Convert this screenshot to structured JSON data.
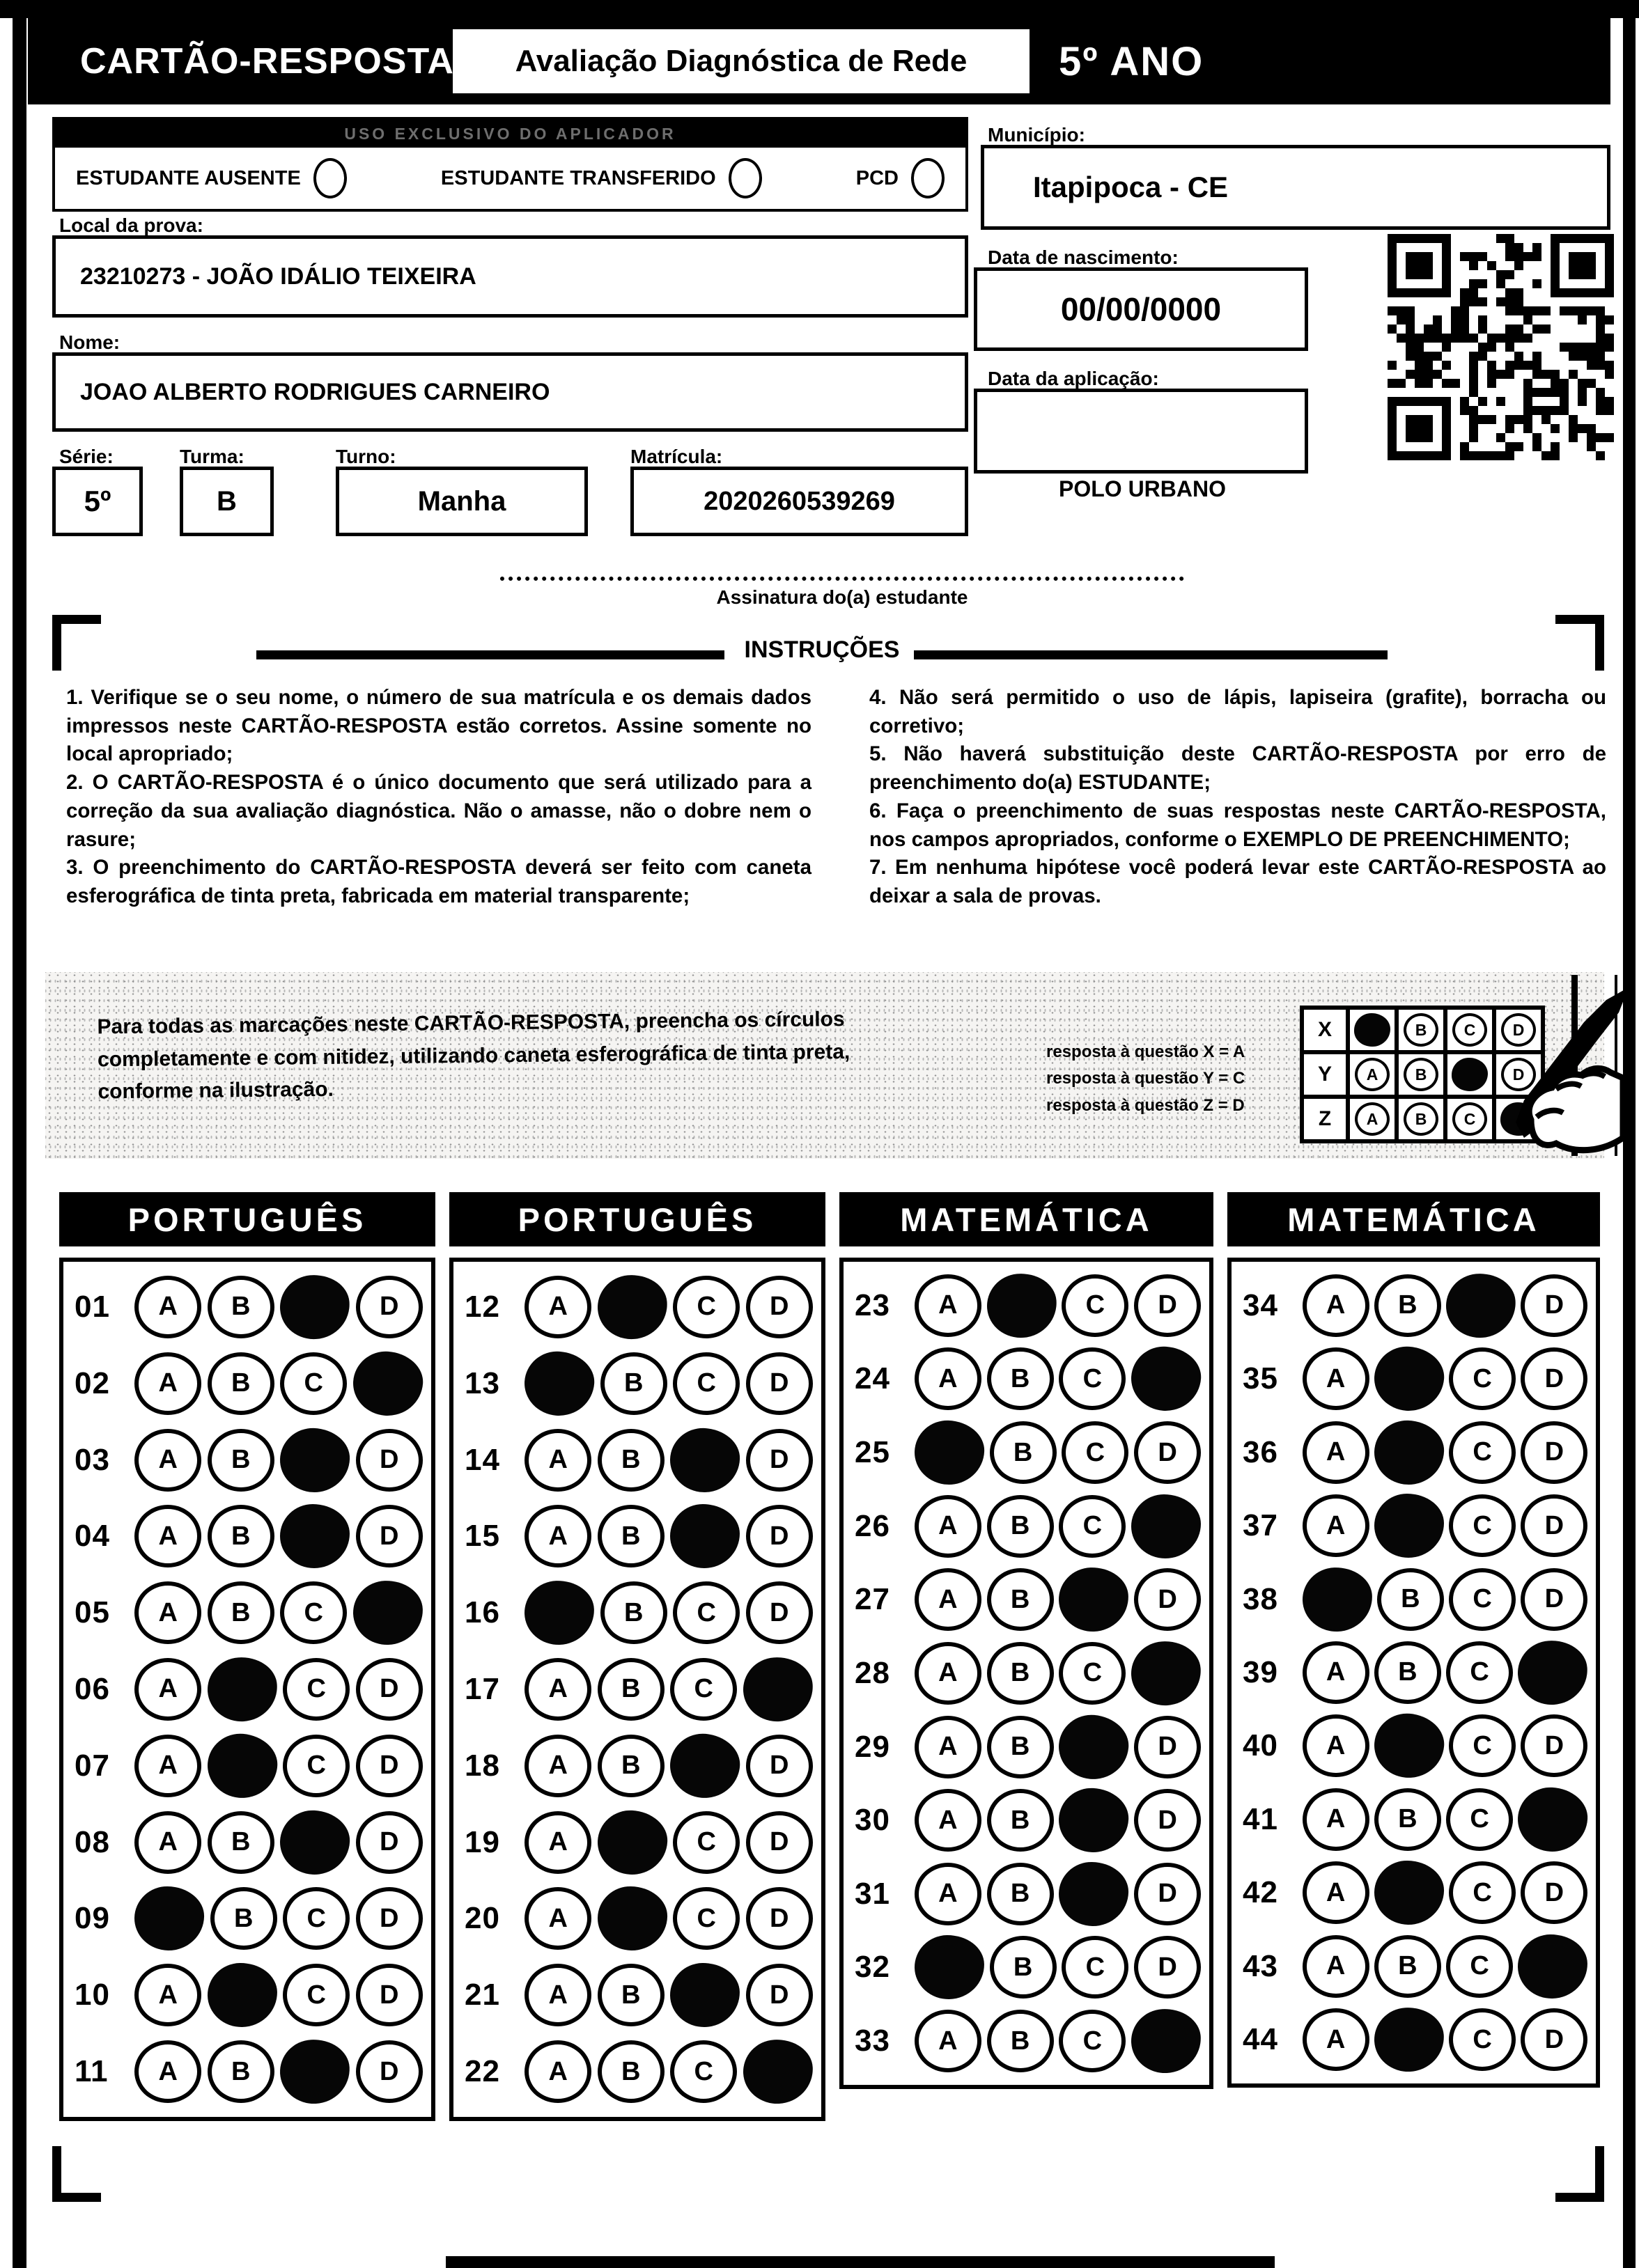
{
  "header": {
    "card_title": "CARTÃO-RESPOSTA",
    "assessment_title": "Avaliação Diagnóstica de Rede",
    "grade": "5º ANO"
  },
  "applicator": {
    "bar_title": "USO EXCLUSIVO DO APLICADOR",
    "options": [
      {
        "label": "ESTUDANTE AUSENTE"
      },
      {
        "label": "ESTUDANTE TRANSFERIDO"
      },
      {
        "label": "PCD"
      }
    ]
  },
  "fields": {
    "local_label": "Local da prova:",
    "local_value": "23210273 - JOÃO IDÁLIO TEIXEIRA",
    "nome_label": "Nome:",
    "nome_value": "JOAO ALBERTO RODRIGUES CARNEIRO",
    "serie_label": "Série:",
    "serie_value": "5º",
    "turma_label": "Turma:",
    "turma_value": "B",
    "turno_label": "Turno:",
    "turno_value": "Manha",
    "matricula_label": "Matrícula:",
    "matricula_value": "2020260539269",
    "municipio_label": "Município:",
    "municipio_value": "Itapipoca - CE",
    "nascimento_label": "Data de nascimento:",
    "nascimento_value": "00/00/0000",
    "aplicacao_label": "Data da aplicação:",
    "aplicacao_value": "",
    "polo": "POLO URBANO"
  },
  "signature": {
    "label": "Assinatura do(a) estudante"
  },
  "instructions": {
    "title": "INSTRUÇÕES",
    "left_items": [
      "1. Verifique se o seu nome, o número de sua matrícula e os demais dados impressos neste CARTÃO-RESPOSTA estão corretos. Assine somente no local apropriado;",
      "2. O CARTÃO-RESPOSTA é o único documento que será utilizado para a correção da sua avaliação diagnóstica. Não o amasse, não o dobre nem o rasure;",
      "3. O preenchimento do CARTÃO-RESPOSTA deverá ser feito com caneta esferográfica de tinta preta, fabricada em material transparente;"
    ],
    "right_items": [
      "4. Não será permitido o uso de lápis, lapiseira (grafite), borracha ou corretivo;",
      "5. Não haverá substituição deste CARTÃO-RESPOSTA por erro de preenchimento do(a) ESTUDANTE;",
      "6. Faça o preenchimento de suas respostas neste CARTÃO-RESPOSTA, nos campos apropriados, conforme o EXEMPLO DE PREENCHIMENTO;",
      "7. Em nenhuma hipótese você poderá levar este CARTÃO-RESPOSTA ao deixar a sala de provas."
    ]
  },
  "example": {
    "text": "Para todas as marcações neste CARTÃO-RESPOSTA, preencha os círculos completamente e com nitidez, utilizando caneta esferográfica de tinta preta, conforme na ilustração.",
    "legend": [
      "resposta à questão X = A",
      "resposta à questão Y = C",
      "resposta à questão Z = D"
    ],
    "grid": {
      "options": [
        "A",
        "B",
        "C",
        "D"
      ],
      "rows": [
        {
          "label": "X",
          "filled": "A"
        },
        {
          "label": "Y",
          "filled": "C"
        },
        {
          "label": "Z",
          "filled": "D"
        }
      ]
    }
  },
  "answers": {
    "options": [
      "A",
      "B",
      "C",
      "D"
    ],
    "columns": [
      {
        "subject": "PORTUGUÊS",
        "questions": [
          {
            "n": "01",
            "filled": "C"
          },
          {
            "n": "02",
            "filled": "D"
          },
          {
            "n": "03",
            "filled": "C"
          },
          {
            "n": "04",
            "filled": "C"
          },
          {
            "n": "05",
            "filled": "D"
          },
          {
            "n": "06",
            "filled": "B"
          },
          {
            "n": "07",
            "filled": "B"
          },
          {
            "n": "08",
            "filled": "C"
          },
          {
            "n": "09",
            "filled": "A"
          },
          {
            "n": "10",
            "filled": "B"
          },
          {
            "n": "11",
            "filled": "C"
          }
        ]
      },
      {
        "subject": "PORTUGUÊS",
        "questions": [
          {
            "n": "12",
            "filled": "B"
          },
          {
            "n": "13",
            "filled": "A"
          },
          {
            "n": "14",
            "filled": "C"
          },
          {
            "n": "15",
            "filled": "C"
          },
          {
            "n": "16",
            "filled": "A"
          },
          {
            "n": "17",
            "filled": "D"
          },
          {
            "n": "18",
            "filled": "C"
          },
          {
            "n": "19",
            "filled": "B"
          },
          {
            "n": "20",
            "filled": "B"
          },
          {
            "n": "21",
            "filled": "C"
          },
          {
            "n": "22",
            "filled": "D"
          }
        ]
      },
      {
        "subject": "MATEMÁTICA",
        "questions": [
          {
            "n": "23",
            "filled": "B"
          },
          {
            "n": "24",
            "filled": "D"
          },
          {
            "n": "25",
            "filled": "A"
          },
          {
            "n": "26",
            "filled": "D"
          },
          {
            "n": "27",
            "filled": "C"
          },
          {
            "n": "28",
            "filled": "D"
          },
          {
            "n": "29",
            "filled": "C"
          },
          {
            "n": "30",
            "filled": "C"
          },
          {
            "n": "31",
            "filled": "C"
          },
          {
            "n": "32",
            "filled": "A"
          },
          {
            "n": "33",
            "filled": "D"
          }
        ]
      },
      {
        "subject": "MATEMÁTICA",
        "questions": [
          {
            "n": "34",
            "filled": "C"
          },
          {
            "n": "35",
            "filled": "B"
          },
          {
            "n": "36",
            "filled": "B"
          },
          {
            "n": "37",
            "filled": "B"
          },
          {
            "n": "38",
            "filled": "A"
          },
          {
            "n": "39",
            "filled": "D"
          },
          {
            "n": "40",
            "filled": "B"
          },
          {
            "n": "41",
            "filled": "D"
          },
          {
            "n": "42",
            "filled": "B"
          },
          {
            "n": "43",
            "filled": "D"
          },
          {
            "n": "44",
            "filled": "B"
          }
        ]
      }
    ]
  },
  "colors": {
    "ink": "#000000",
    "paper": "#ffffff",
    "faint_bar_text": "#6e6e6e"
  }
}
